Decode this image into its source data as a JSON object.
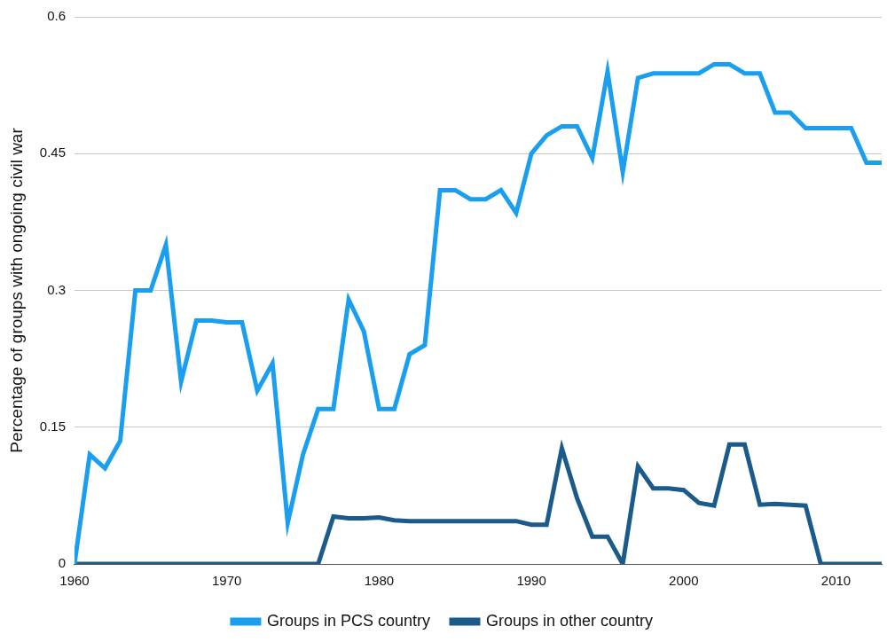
{
  "chart_data": {
    "type": "line",
    "y_label": "Percentage of groups with ongoing civil war",
    "x": [
      1960,
      1961,
      1962,
      1963,
      1964,
      1965,
      1966,
      1967,
      1968,
      1969,
      1970,
      1971,
      1972,
      1973,
      1974,
      1975,
      1976,
      1977,
      1978,
      1979,
      1980,
      1981,
      1982,
      1983,
      1984,
      1985,
      1986,
      1987,
      1988,
      1989,
      1990,
      1991,
      1992,
      1993,
      1994,
      1995,
      1996,
      1997,
      1998,
      1999,
      2000,
      2001,
      2002,
      2003,
      2004,
      2005,
      2006,
      2007,
      2008,
      2009,
      2010,
      2011,
      2012,
      2013
    ],
    "series": [
      {
        "name": "Groups in PCS country",
        "color": "#1a9ef0",
        "values": [
          0,
          0.12,
          0.105,
          0.135,
          0.3,
          0.3,
          0.35,
          0.2,
          0.267,
          0.267,
          0.265,
          0.265,
          0.19,
          0.22,
          0.045,
          0.12,
          0.17,
          0.17,
          0.29,
          0.255,
          0.17,
          0.17,
          0.23,
          0.24,
          0.41,
          0.41,
          0.4,
          0.4,
          0.41,
          0.385,
          0.45,
          0.47,
          0.48,
          0.48,
          0.445,
          0.54,
          0.43,
          0.533,
          0.538,
          0.538,
          0.538,
          0.538,
          0.548,
          0.548,
          0.538,
          0.538,
          0.495,
          0.495,
          0.478,
          0.478,
          0.478,
          0.478,
          0.44,
          0.44
        ]
      },
      {
        "name": "Groups in other country",
        "color": "#1b5b8b",
        "values": [
          0,
          0,
          0,
          0,
          0,
          0,
          0,
          0,
          0,
          0,
          0,
          0,
          0,
          0,
          0,
          0,
          0,
          0.052,
          0.05,
          0.05,
          0.051,
          0.048,
          0.047,
          0.047,
          0.047,
          0.047,
          0.047,
          0.047,
          0.047,
          0.047,
          0.043,
          0.043,
          0.127,
          0.072,
          0.03,
          0.03,
          0,
          0.107,
          0.083,
          0.083,
          0.081,
          0.067,
          0.064,
          0.131,
          0.131,
          0.065,
          0.066,
          0.065,
          0.064,
          0,
          0,
          0,
          0,
          0
        ]
      }
    ],
    "xlim": [
      1960,
      2013
    ],
    "xticks": [
      1960,
      1970,
      1980,
      1990,
      2000,
      2010
    ],
    "ylim": [
      0,
      0.6
    ],
    "yticks": [
      0,
      0.15,
      0.3,
      0.45,
      0.6
    ],
    "grid": true,
    "legend": "bottom"
  }
}
